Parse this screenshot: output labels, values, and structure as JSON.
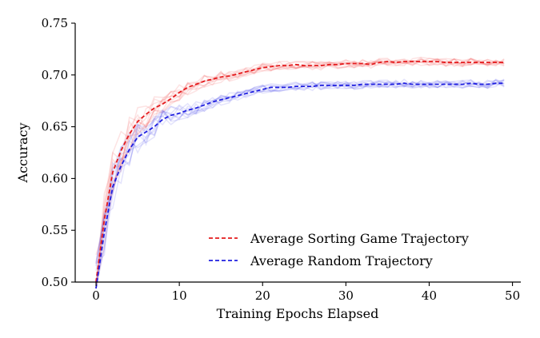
{
  "chart_data": {
    "type": "line",
    "title": "",
    "xlabel": "Training Epochs Elapsed",
    "ylabel": "Accuracy",
    "xlim": [
      -2.5,
      51
    ],
    "ylim": [
      0.5,
      0.75
    ],
    "xticks": [
      0,
      10,
      20,
      30,
      40,
      50
    ],
    "yticks": [
      0.5,
      0.55,
      0.6,
      0.65,
      0.7,
      0.75
    ],
    "xtick_labels": [
      "0",
      "10",
      "20",
      "30",
      "40",
      "50"
    ],
    "ytick_labels": [
      "0.50",
      "0.55",
      "0.60",
      "0.65",
      "0.70",
      "0.75"
    ],
    "grid": false,
    "legend_position": "lower-right",
    "x": [
      0,
      1,
      2,
      3,
      4,
      5,
      6,
      7,
      8,
      9,
      10,
      11,
      12,
      13,
      14,
      15,
      16,
      17,
      18,
      19,
      20,
      21,
      22,
      23,
      24,
      25,
      26,
      27,
      28,
      29,
      30,
      31,
      32,
      33,
      34,
      35,
      36,
      37,
      38,
      39,
      40,
      41,
      42,
      43,
      44,
      45,
      46,
      47,
      48,
      49
    ],
    "series": [
      {
        "name": "Average Sorting Game Trajectory",
        "color": "#e41a1c",
        "style": "dashed",
        "values": [
          0.5,
          0.56,
          0.606,
          0.627,
          0.643,
          0.655,
          0.662,
          0.668,
          0.672,
          0.677,
          0.683,
          0.688,
          0.691,
          0.694,
          0.696,
          0.698,
          0.699,
          0.701,
          0.703,
          0.705,
          0.707,
          0.708,
          0.709,
          0.709,
          0.71,
          0.709,
          0.709,
          0.709,
          0.71,
          0.71,
          0.711,
          0.711,
          0.711,
          0.71,
          0.712,
          0.713,
          0.712,
          0.713,
          0.713,
          0.713,
          0.713,
          0.713,
          0.712,
          0.712,
          0.712,
          0.712,
          0.712,
          0.712,
          0.712,
          0.712
        ]
      },
      {
        "name": "Average Random Trajectory",
        "color": "#1f1fe0",
        "style": "dashed",
        "values": [
          0.49,
          0.548,
          0.592,
          0.612,
          0.628,
          0.64,
          0.645,
          0.65,
          0.657,
          0.661,
          0.663,
          0.666,
          0.668,
          0.671,
          0.674,
          0.676,
          0.678,
          0.68,
          0.682,
          0.684,
          0.686,
          0.688,
          0.688,
          0.688,
          0.689,
          0.689,
          0.689,
          0.69,
          0.69,
          0.69,
          0.69,
          0.69,
          0.691,
          0.691,
          0.691,
          0.691,
          0.691,
          0.692,
          0.691,
          0.691,
          0.691,
          0.691,
          0.691,
          0.691,
          0.691,
          0.692,
          0.691,
          0.691,
          0.692,
          0.692
        ]
      }
    ],
    "individual_runs_per_series": 10
  }
}
